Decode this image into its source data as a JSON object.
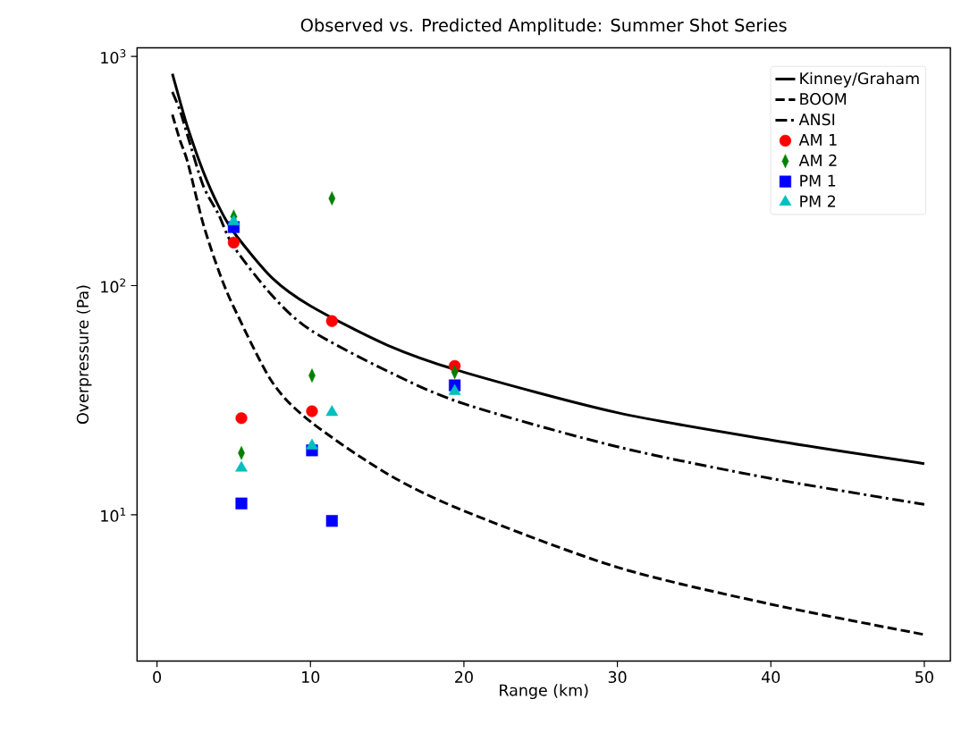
{
  "chart_data": {
    "type": "scatter",
    "title": "Observed vs. Predicted Amplitude: Summer Shot Series",
    "xlabel": "Range (km)",
    "ylabel": "Overpressure (Pa)",
    "log": "y",
    "xlim": [
      -1.3,
      51.7
    ],
    "ylim": [
      2.3,
      1090
    ],
    "xticks": [
      0,
      10,
      20,
      30,
      40,
      50
    ],
    "yticks": [
      {
        "value": 10,
        "label": "10$^{1}$"
      },
      {
        "value": 100,
        "label": "10$^{2}$"
      },
      {
        "value": 1000,
        "label": "10$^{3}$"
      }
    ],
    "legend": "top right",
    "grid": false,
    "series": [
      {
        "name": "Kinney/Graham",
        "type": "line",
        "color": "#000000",
        "line_style": "solid",
        "marker": "none",
        "x": [
          1,
          1.5,
          2,
          3,
          4,
          5,
          7.5,
          10,
          15,
          20,
          30,
          40,
          50
        ],
        "values": [
          840,
          637,
          489,
          316,
          223,
          171,
          108,
          81.5,
          55,
          41.9,
          27.9,
          21.2,
          16.7
        ]
      },
      {
        "name": "BOOM",
        "type": "line",
        "color": "#000000",
        "line_style": "dashed",
        "marker": "none",
        "x": [
          1,
          1.5,
          2,
          3,
          4,
          5,
          7.5,
          10,
          15,
          20,
          30,
          40,
          50
        ],
        "values": [
          557,
          430,
          345,
          187,
          117,
          80.6,
          38,
          25.5,
          15.1,
          10.4,
          5.9,
          4.07,
          3.0
        ]
      },
      {
        "name": "ANSI",
        "type": "line",
        "color": "#000000",
        "line_style": "dashdot",
        "marker": "none",
        "x": [
          1,
          1.5,
          2,
          3,
          4,
          5,
          7.5,
          10,
          15,
          20,
          30,
          40,
          50
        ],
        "values": [
          700,
          580,
          450,
          274,
          205,
          148,
          90.5,
          64,
          42.4,
          30.5,
          19.8,
          14.4,
          11.1
        ]
      },
      {
        "name": "AM 1",
        "color": "#ff0000",
        "marker": "circle",
        "x": [
          5.0,
          5.5,
          10.1,
          11.4,
          19.4
        ],
        "values": [
          154,
          26.4,
          28.3,
          70,
          44.6
        ]
      },
      {
        "name": "AM 2",
        "color": "#008000",
        "marker": "diamond",
        "x": [
          5.0,
          5.5,
          10.1,
          11.4,
          19.4
        ],
        "values": [
          200,
          18.6,
          40.5,
          240,
          41.9
        ]
      },
      {
        "name": "PM 1",
        "color": "#0000ff",
        "marker": "square",
        "x": [
          5.0,
          5.5,
          10.1,
          11.4,
          19.4
        ],
        "values": [
          180,
          11.2,
          19.1,
          9.4,
          36.7
        ]
      },
      {
        "name": "PM 2",
        "color": "#00bfbf",
        "marker": "triangle",
        "x": [
          5.0,
          5.5,
          10.1,
          11.4,
          19.4
        ],
        "values": [
          190,
          16.0,
          20.0,
          28.0,
          34.6
        ]
      }
    ]
  }
}
